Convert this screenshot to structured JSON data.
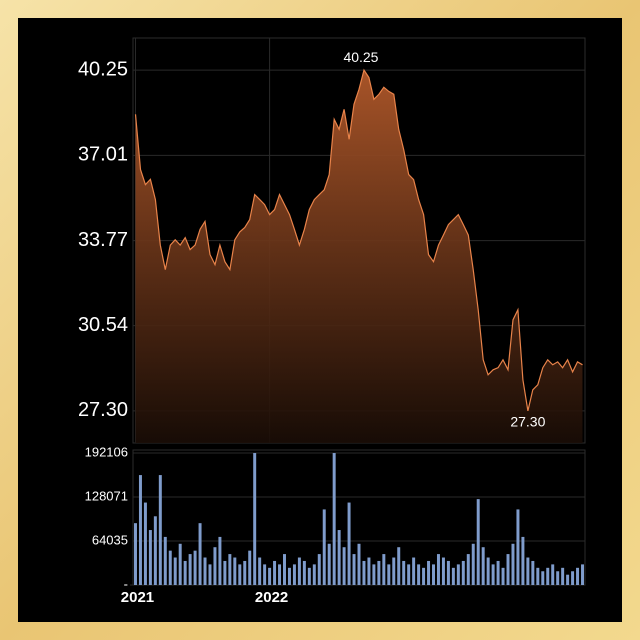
{
  "chart_data": {
    "type": "line",
    "categories": [
      "2021",
      null,
      null,
      null,
      null,
      null,
      null,
      null,
      null,
      null,
      null,
      null,
      null,
      null,
      null,
      null,
      null,
      null,
      null,
      null,
      null,
      null,
      null,
      null,
      null,
      null,
      null,
      "2022",
      null,
      null,
      null,
      null,
      null,
      null,
      null,
      null,
      null,
      null,
      null,
      null,
      null,
      null,
      null,
      null,
      null,
      null,
      null,
      null,
      null,
      null,
      null,
      null,
      null,
      null,
      null,
      null,
      null,
      null,
      null,
      null,
      null,
      null,
      null,
      null,
      null,
      null,
      null,
      null,
      null,
      null,
      null,
      null,
      null,
      null,
      null,
      null,
      null,
      null,
      null,
      null,
      null,
      null,
      null,
      null,
      null,
      null,
      null,
      null,
      null,
      null,
      null
    ],
    "values": [
      38.57,
      36.47,
      35.9,
      36.1,
      35.33,
      33.6,
      32.67,
      33.6,
      33.8,
      33.6,
      33.88,
      33.43,
      33.6,
      34.2,
      34.5,
      33.24,
      32.86,
      33.6,
      32.97,
      32.67,
      33.8,
      34.1,
      34.27,
      34.57,
      35.52,
      35.33,
      35.14,
      34.76,
      34.95,
      35.52,
      35.14,
      34.76,
      34.2,
      33.6,
      34.2,
      34.95,
      35.33,
      35.52,
      35.7,
      36.28,
      38.38,
      38.0,
      38.76,
      37.62,
      38.95,
      39.52,
      40.25,
      39.97,
      39.14,
      39.33,
      39.6,
      39.44,
      39.33,
      38.0,
      37.23,
      36.28,
      36.09,
      35.33,
      34.76,
      33.24,
      32.97,
      33.6,
      33.98,
      34.38,
      34.57,
      34.76,
      34.38,
      33.98,
      32.67,
      31.14,
      29.24,
      28.67,
      28.86,
      28.94,
      29.24,
      28.86,
      30.76,
      31.14,
      28.48,
      27.3,
      28.1,
      28.29,
      28.94,
      29.24,
      29.05,
      29.16,
      28.94,
      29.24,
      28.78,
      29.16,
      29.05
    ],
    "color": "#e8834a",
    "ylim": [
      26.08,
      41.47
    ],
    "yticks": [
      {
        "value": 27.3,
        "label": "27.30"
      },
      30.54,
      33.77,
      37.01,
      40.25
    ],
    "annotations": [
      {
        "label": "40.25",
        "value": 40.25
      },
      {
        "label": "27.30",
        "value": 27.3
      }
    ],
    "volume": {
      "type": "bar",
      "values": [
        90000,
        160000,
        120000,
        80000,
        100000,
        160000,
        70000,
        50000,
        40000,
        60000,
        35000,
        45000,
        50000,
        90000,
        40000,
        30000,
        55000,
        70000,
        35000,
        45000,
        40000,
        30000,
        35000,
        50000,
        192106,
        40000,
        30000,
        25000,
        35000,
        30000,
        45000,
        25000,
        30000,
        40000,
        35000,
        25000,
        30000,
        45000,
        110000,
        60000,
        192106,
        80000,
        55000,
        120000,
        45000,
        60000,
        35000,
        40000,
        30000,
        35000,
        45000,
        30000,
        40000,
        55000,
        35000,
        30000,
        40000,
        30000,
        25000,
        35000,
        30000,
        45000,
        40000,
        35000,
        25000,
        30000,
        35000,
        45000,
        60000,
        125000,
        55000,
        40000,
        30000,
        35000,
        25000,
        45000,
        60000,
        110000,
        70000,
        40000,
        35000,
        25000,
        20000,
        25000,
        30000,
        20000,
        25000,
        15000,
        20000,
        25000,
        30000
      ],
      "color": "#7f9ccc",
      "ylim": [
        0,
        196500
      ],
      "yticks": [
        {
          "value": 0,
          "label": "-"
        },
        64035,
        128071,
        192106
      ]
    }
  }
}
